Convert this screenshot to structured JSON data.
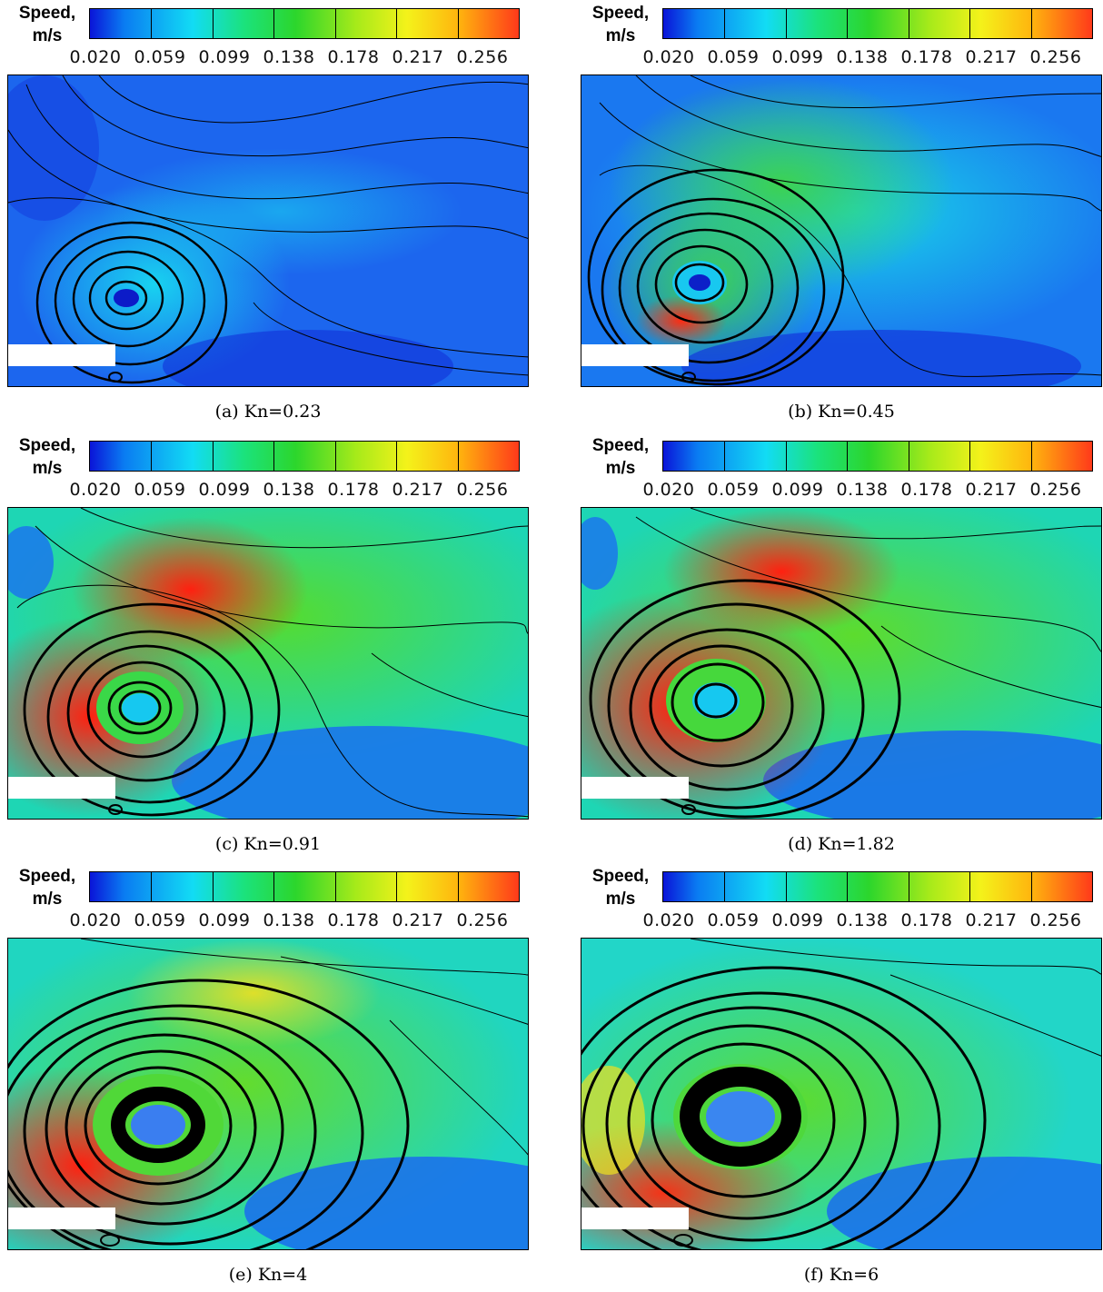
{
  "colorbar": {
    "title_line1": "Speed,",
    "title_line2": "m/s",
    "ticks": [
      "0.020",
      "0.059",
      "0.099",
      "0.138",
      "0.178",
      "0.217",
      "0.256"
    ]
  },
  "panels": [
    {
      "caption": "(a)  Kn=0.23",
      "kn": 0.23
    },
    {
      "caption": "(b)  Kn=0.45",
      "kn": 0.45
    },
    {
      "caption": "(c)  Kn=0.91",
      "kn": 0.91
    },
    {
      "caption": "(d)  Kn=1.82",
      "kn": 1.82
    },
    {
      "caption": "(e)  Kn=4",
      "kn": 4
    },
    {
      "caption": "(f)  Kn=6",
      "kn": 6
    }
  ]
}
